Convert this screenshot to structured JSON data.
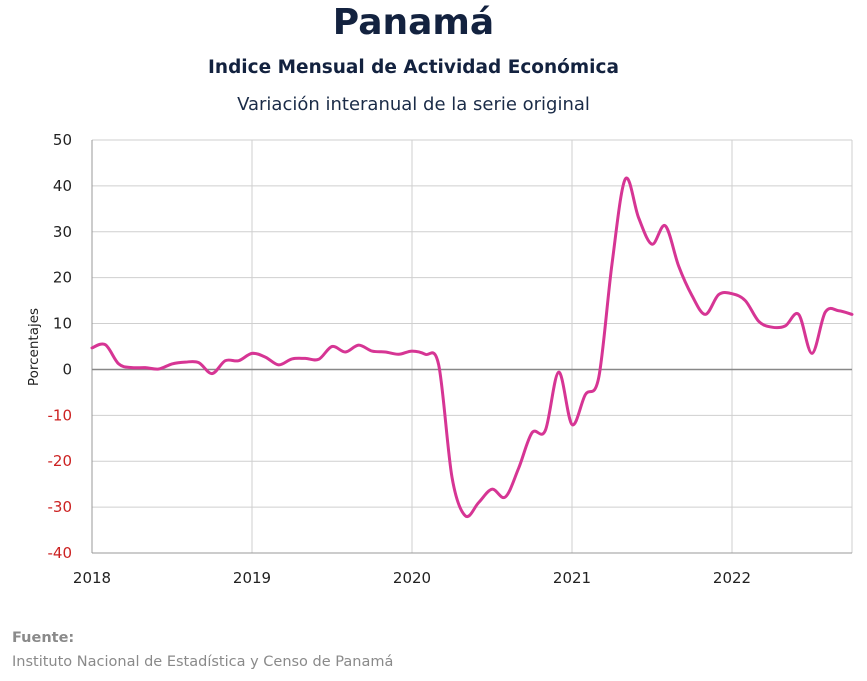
{
  "header": {
    "title": "Panamá",
    "subtitle": "Indice Mensual de  Actividad Económica",
    "subtitle2": "Variación interanual de la serie original"
  },
  "footer": {
    "source_label": "Fuente:",
    "source_text": "Instituto Nacional de Estadística y Censo de Panamá"
  },
  "chart_data": {
    "type": "line",
    "title": "Variación interanual de la serie original",
    "xlabel": "",
    "ylabel": "Porcentajes",
    "ylim": [
      -40,
      50
    ],
    "xlim": [
      "2018-01",
      "2022-10"
    ],
    "grid": true,
    "legend": "none",
    "colors": {
      "line": "#d63594",
      "negative_tick": "#cc2222",
      "positive_tick": "#222222",
      "zero_line": "#888888",
      "grid": "#cfcfcf"
    },
    "x_tick_labels": [
      "2018",
      "2019",
      "2020",
      "2021",
      "2022"
    ],
    "y_tick_labels": [
      "50",
      "40",
      "30",
      "20",
      "10",
      "0",
      "-10",
      "-20",
      "-30",
      "-40"
    ],
    "series": [
      {
        "x": [
          "2018-01",
          "2018-02",
          "2018-03",
          "2018-04",
          "2018-05",
          "2018-06",
          "2018-07",
          "2018-08",
          "2018-09",
          "2018-10",
          "2018-11",
          "2018-12",
          "2019-01",
          "2019-02",
          "2019-03",
          "2019-04",
          "2019-05",
          "2019-06",
          "2019-07",
          "2019-08",
          "2019-09",
          "2019-10",
          "2019-11",
          "2019-12",
          "2020-01",
          "2020-02",
          "2020-03",
          "2020-04",
          "2020-05",
          "2020-06",
          "2020-07",
          "2020-08",
          "2020-09",
          "2020-10",
          "2020-11",
          "2020-12",
          "2021-01",
          "2021-02",
          "2021-03",
          "2021-04",
          "2021-05",
          "2021-06",
          "2021-07",
          "2021-08",
          "2021-09",
          "2021-10",
          "2021-11",
          "2021-12",
          "2022-01",
          "2022-02",
          "2022-03",
          "2022-04",
          "2022-05",
          "2022-06",
          "2022-07",
          "2022-08",
          "2022-09",
          "2022-10"
        ],
        "values": [
          4.7,
          5.4,
          1.2,
          0.4,
          0.4,
          0.1,
          1.2,
          1.6,
          1.5,
          -0.9,
          1.9,
          1.9,
          3.5,
          2.7,
          1.0,
          2.3,
          2.4,
          2.2,
          5.0,
          3.8,
          5.3,
          4.0,
          3.8,
          3.3,
          4.0,
          3.3,
          1.0,
          -23.5,
          -31.9,
          -29.0,
          -26.1,
          -27.8,
          -21.5,
          -13.8,
          -13.3,
          -0.6,
          -12.0,
          -5.5,
          -1.8,
          23.0,
          41.5,
          33.0,
          27.3,
          31.3,
          22.5,
          16.1,
          12.0,
          16.3,
          16.5,
          15.0,
          10.5,
          9.2,
          9.5,
          12.0,
          3.5,
          12.5,
          12.8,
          12.0
        ]
      }
    ]
  }
}
